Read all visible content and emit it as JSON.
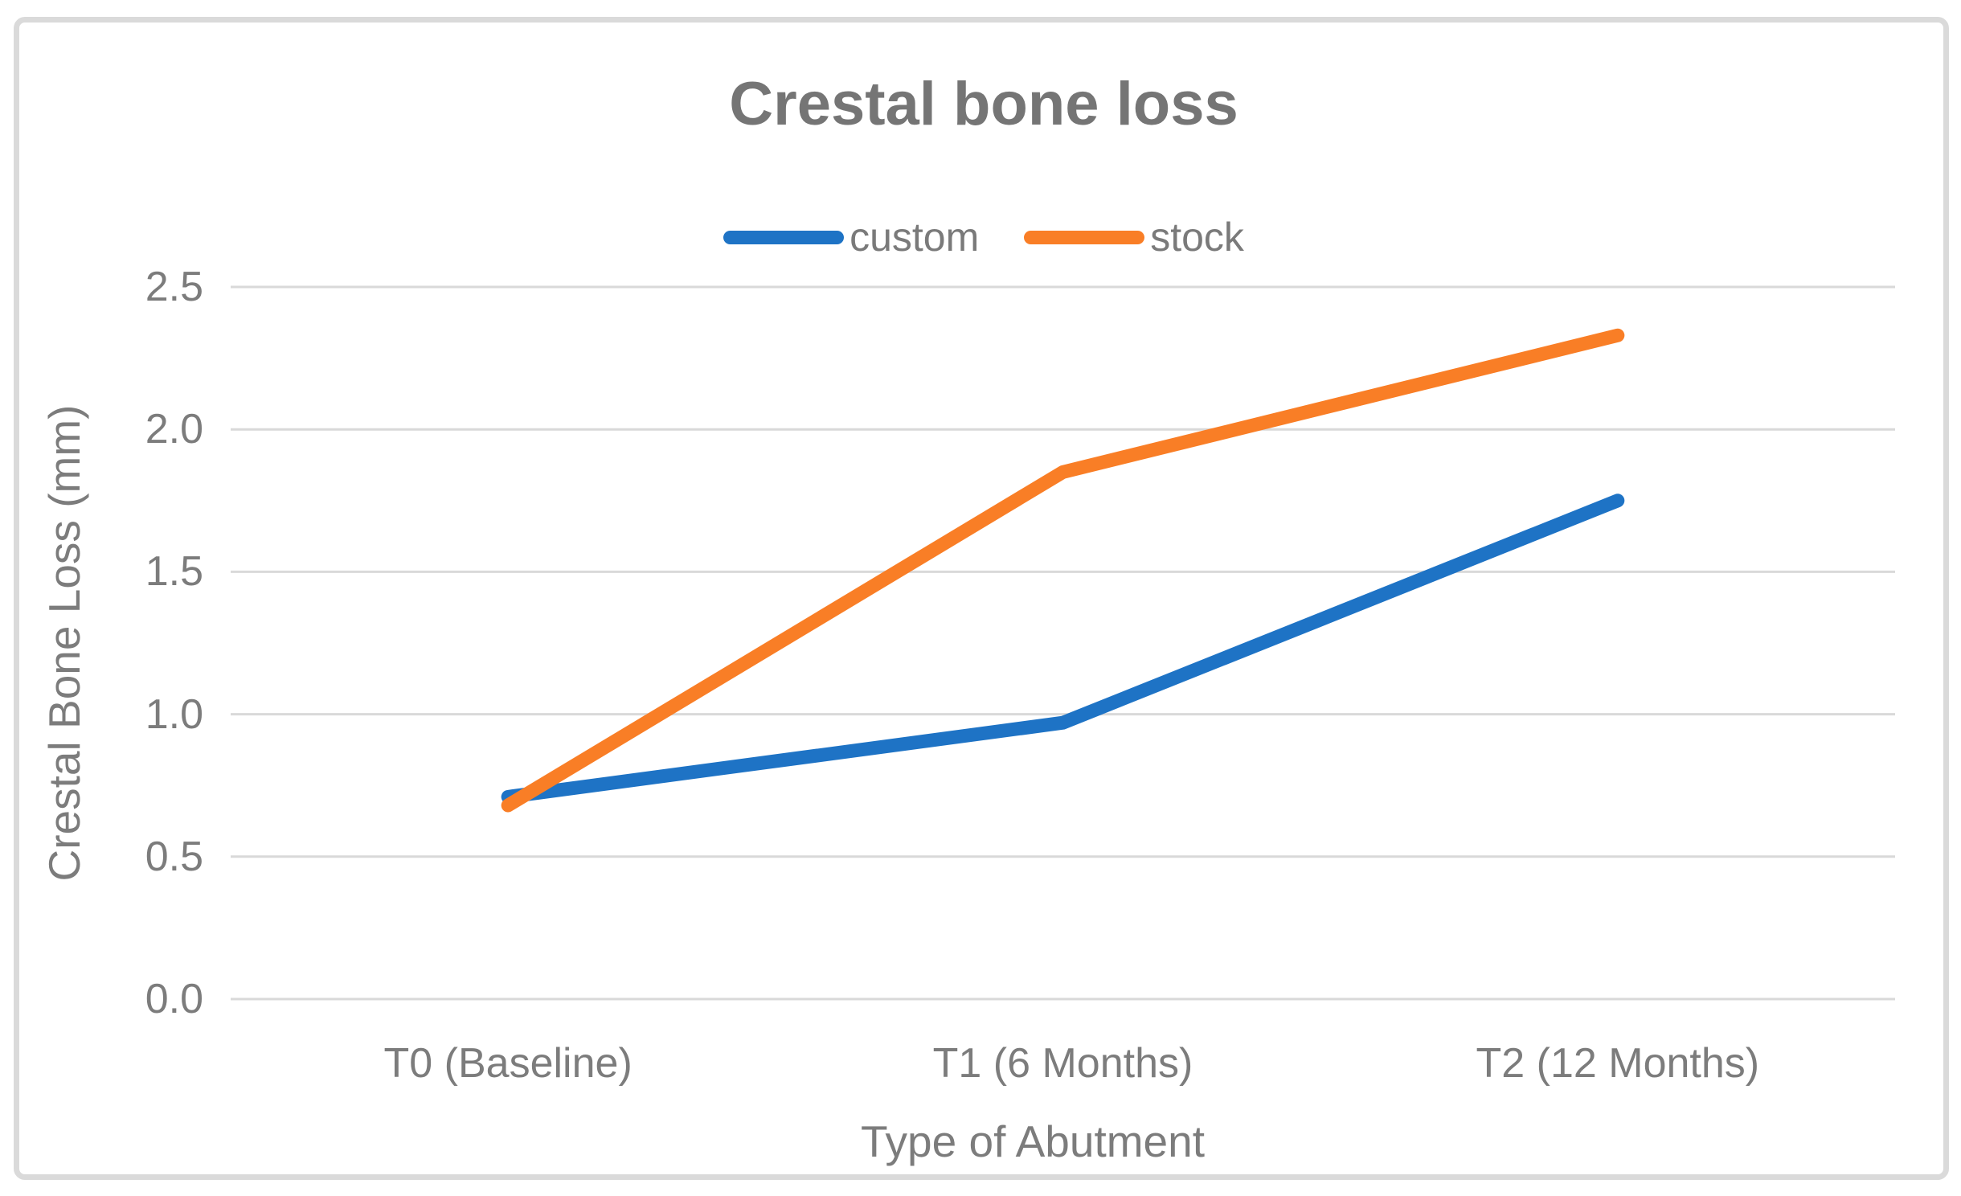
{
  "chart_data": {
    "type": "line",
    "title": "Crestal bone loss",
    "categories": [
      "T0 (Baseline)",
      "T1 (6 Months)",
      "T2 (12 Months)"
    ],
    "series": [
      {
        "name": "custom",
        "color": "#1E73C5",
        "values": [
          0.71,
          0.97,
          1.75
        ]
      },
      {
        "name": "stock",
        "color": "#F97E26",
        "values": [
          0.68,
          1.85,
          2.33
        ]
      }
    ],
    "xlabel": "Type of Abutment",
    "ylabel": "Crestal Bone Loss (mm)",
    "ylim": [
      0,
      2.5
    ],
    "ytick_step": 0.5,
    "yticks": [
      "0.0",
      "0.5",
      "1.0",
      "1.5",
      "2.0",
      "2.5"
    ],
    "grid": true,
    "gridline_color": "#D9D9D9",
    "frame_color": "#DADADA",
    "text_color": "#7C7C7C",
    "legend_position": "top"
  }
}
